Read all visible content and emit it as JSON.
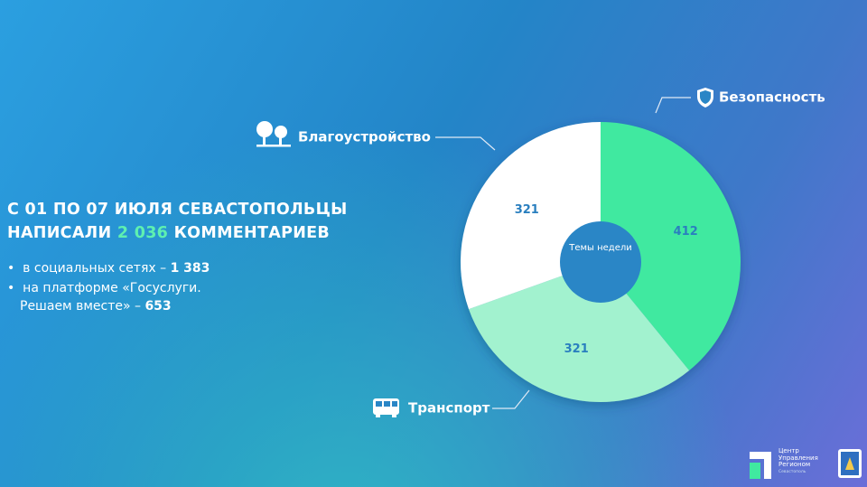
{
  "headline": {
    "line1": "С 01 ПО 07 ИЮЛЯ СЕВАСТОПОЛЬЦЫ",
    "line2_prefix": "НАПИСАЛИ",
    "total": "2 036",
    "line2_suffix": "КОММЕНТАРИЕВ"
  },
  "bullets": [
    {
      "lines": [
        "в социальных сетях –"
      ],
      "value": "1 383"
    },
    {
      "lines": [
        "на платформе «Госуслуги.",
        "Решаем вместе» –"
      ],
      "value": "653"
    }
  ],
  "logo": {
    "lines": [
      "Центр",
      "Управления",
      "Регионом"
    ],
    "city": "Севастополь"
  },
  "chart_data": {
    "type": "pie",
    "center_label": "Темы недели",
    "categories": [
      "Безопасность",
      "Транспорт",
      "Благоустройство"
    ],
    "values": [
      412,
      321,
      321
    ],
    "colors": [
      "#40e9a0",
      "#a2f2cf",
      "#ffffff"
    ]
  }
}
